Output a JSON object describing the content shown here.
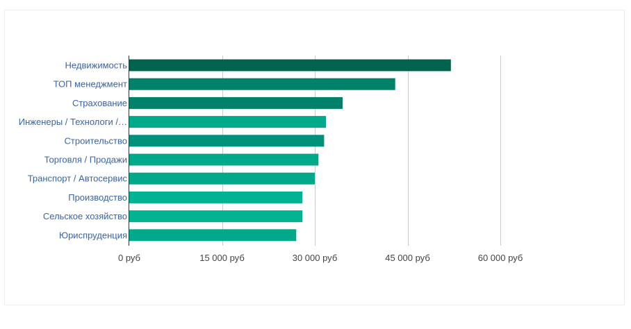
{
  "chart_data": {
    "type": "bar",
    "orientation": "horizontal",
    "categories": [
      "Недвижимость",
      "ТОП менеджмент",
      "Страхование",
      "Инженеры / Технологи /…",
      "Строительство",
      "Торговля / Продажи",
      "Транспорт / Автосервис",
      "Производство",
      "Сельское хозяйство",
      "Юриспруденция"
    ],
    "values": [
      52000,
      43000,
      34500,
      31800,
      31500,
      30600,
      30000,
      28000,
      28000,
      27000
    ],
    "bar_colors": [
      "#00634c",
      "#00816a",
      "#00816a",
      "#00a98a",
      "#00917c",
      "#00a98a",
      "#00a98a",
      "#00b491",
      "#00b491",
      "#00a98a"
    ],
    "xlim": [
      0,
      60000
    ],
    "ticks": [
      0,
      15000,
      30000,
      45000,
      60000
    ],
    "tick_labels": [
      "0 руб",
      "15 000 руб",
      "30 000 руб",
      "45 000 руб",
      "60 000 руб"
    ],
    "grid": true,
    "gridline_color": "#cccccc",
    "axis_color": "#333333",
    "label_color": "#3b63a8",
    "tick_label_color": "#444444",
    "title": "",
    "xlabel": "",
    "ylabel": ""
  }
}
